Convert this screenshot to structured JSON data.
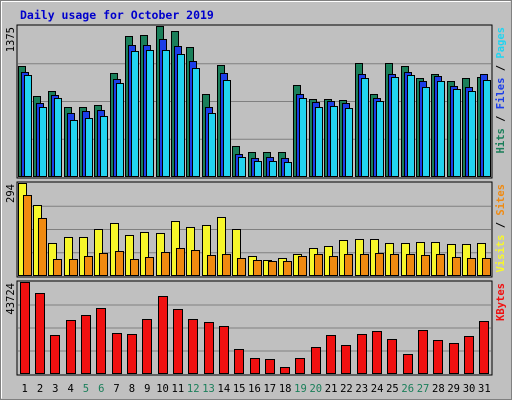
{
  "chart_data": {
    "type": "bar",
    "title": "Daily usage for October 2019",
    "days": [
      "1",
      "2",
      "3",
      "4",
      "5",
      "6",
      "7",
      "8",
      "9",
      "10",
      "11",
      "12",
      "13",
      "14",
      "15",
      "16",
      "17",
      "18",
      "19",
      "20",
      "21",
      "22",
      "23",
      "24",
      "25",
      "26",
      "27",
      "28",
      "29",
      "30",
      "31"
    ],
    "weekend_days": [
      "5",
      "6",
      "12",
      "13",
      "19",
      "20",
      "26",
      "27"
    ],
    "colors": {
      "title": "#0000cc",
      "hits": "#1a7f5a",
      "files": "#1c3ee8",
      "pages": "#22d4f0",
      "visits": "#f7f72a",
      "sites": "#f08a10",
      "kbytes": "#f01010",
      "weekday_label": "#000000",
      "weekend_label": "#1a7f5a"
    },
    "panels": [
      {
        "id": "hits-panel",
        "ymax_label": "1375",
        "ymax": 1375,
        "legend": [
          {
            "label": "Hits",
            "color": "#1a7f5a"
          },
          {
            "label": "Files",
            "color": "#1c3ee8"
          },
          {
            "label": "Pages",
            "color": "#22d4f0"
          }
        ],
        "series": [
          {
            "name": "Hits",
            "color": "#1a7f5a",
            "values": [
              1010,
              740,
              780,
              640,
              640,
              660,
              950,
              1280,
              1290,
              1375,
              1330,
              1180,
              760,
              1020,
              280,
              230,
              230,
              230,
              840,
              710,
              710,
              700,
              1040,
              760,
              1040,
              1010,
              900,
              940,
              870,
              900,
              910
            ]
          },
          {
            "name": "Files",
            "color": "#1c3ee8",
            "values": [
              960,
              670,
              750,
              580,
              600,
              610,
              890,
              1200,
              1200,
              1260,
              1190,
              1060,
              640,
              950,
              210,
              170,
              180,
              170,
              760,
              680,
              690,
              670,
              940,
              720,
              940,
              960,
              870,
              920,
              830,
              820,
              940
            ]
          },
          {
            "name": "Pages",
            "color": "#22d4f0",
            "values": [
              930,
              640,
              720,
              520,
              540,
              560,
              860,
              1150,
              1160,
              1160,
              1120,
              990,
              580,
              880,
              180,
              150,
              150,
              140,
              720,
              640,
              650,
              630,
              900,
              690,
              910,
              930,
              820,
              870,
              800,
              780,
              880
            ]
          }
        ]
      },
      {
        "id": "visits-panel",
        "ymax_label": "294",
        "ymax": 294,
        "legend": [
          {
            "label": "Visits",
            "color": "#f7f72a"
          },
          {
            "label": "Sites",
            "color": "#f08a10"
          }
        ],
        "series": [
          {
            "name": "Visits",
            "color": "#f7f72a",
            "values": [
              294,
              226,
              104,
              124,
              123,
              147,
              166,
              130,
              138,
              136,
              175,
              156,
              160,
              185,
              149,
              62,
              52,
              58,
              68,
              90,
              94,
              115,
              117,
              116,
              103,
              104,
              107,
              109,
              101,
              101,
              105
            ]
          },
          {
            "name": "Sites",
            "color": "#f08a10",
            "values": [
              255,
              183,
              54,
              55,
              63,
              73,
              78,
              53,
              60,
              77,
              88,
              82,
              66,
              71,
              57,
              52,
              48,
              48,
              63,
              68,
              62,
              69,
              69,
              72,
              69,
              69,
              66,
              70,
              60,
              57,
              57
            ]
          }
        ]
      },
      {
        "id": "kbytes-panel",
        "ymax_label": "43724",
        "ymax": 43724,
        "legend": [
          {
            "label": "KBytes",
            "color": "#f01010"
          }
        ],
        "series": [
          {
            "name": "KBytes",
            "color": "#f01010",
            "values": [
              43724,
              38500,
              18500,
              25800,
              28000,
              31400,
              19600,
              18800,
              26200,
              37200,
              31000,
              26000,
              24900,
              22800,
              11800,
              7400,
              7000,
              3200,
              7600,
              13000,
              18300,
              13800,
              18800,
              20600,
              16500,
              9700,
              20800,
              16000,
              14900,
              18200,
              25000
            ]
          }
        ]
      }
    ]
  }
}
